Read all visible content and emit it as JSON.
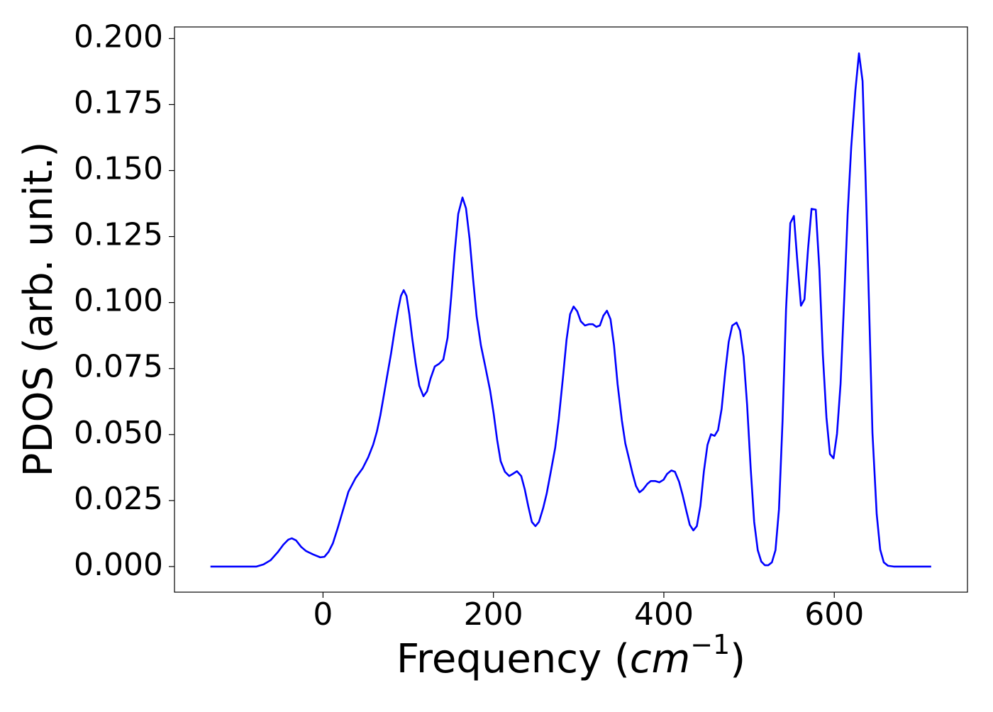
{
  "chart_data": {
    "type": "line",
    "x_label": [
      "Frequency (",
      "cm",
      "−1",
      ")"
    ],
    "y_label": "PDOS (arb. unit.)",
    "color": "#0000ff",
    "xlim": [
      -174.3,
      756.3
    ],
    "ylim": [
      -0.0097,
      0.2044
    ],
    "xticks": [
      0,
      200,
      400,
      600
    ],
    "yticks": [
      {
        "value": 0,
        "label": "0.000"
      },
      {
        "value": 0.025,
        "label": "0.025"
      },
      {
        "value": 0.05,
        "label": "0.050"
      },
      {
        "value": 0.075,
        "label": "0.075"
      },
      {
        "value": 0.1,
        "label": "0.100"
      },
      {
        "value": 0.125,
        "label": "0.125"
      },
      {
        "value": 0.15,
        "label": "0.150"
      },
      {
        "value": 0.175,
        "label": "0.175"
      },
      {
        "value": 0.2,
        "label": "0.200"
      }
    ],
    "x": [
      -132.1,
      -78.1,
      -69.8,
      -61.5,
      -53.2,
      -46.5,
      -40.7,
      -36.6,
      -31.6,
      -25.8,
      -20.0,
      -11.6,
      -3.3,
      1.7,
      6.6,
      11.6,
      17.4,
      23.3,
      29.9,
      38.2,
      46.5,
      53.2,
      59.0,
      63.2,
      67.3,
      71.5,
      75.6,
      79.8,
      83.9,
      88.1,
      91.4,
      94.7,
      98.0,
      101.3,
      104.7,
      108.8,
      113.0,
      117.9,
      122.1,
      126.2,
      131.2,
      136.2,
      141.2,
      146.2,
      150.4,
      154.5,
      158.7,
      163.7,
      167.8,
      172.0,
      176.2,
      180.3,
      185.3,
      190.3,
      196.1,
      200.2,
      204.4,
      208.5,
      213.5,
      218.5,
      222.7,
      227.6,
      232.6,
      236.8,
      240.9,
      245.1,
      249.3,
      253.4,
      258.4,
      262.6,
      267.6,
      272.5,
      276.7,
      281.7,
      285.8,
      290.0,
      294.1,
      298.3,
      302.5,
      307.4,
      312.4,
      316.6,
      320.7,
      324.9,
      329.0,
      333.2,
      337.4,
      341.5,
      345.7,
      350.7,
      354.8,
      359.0,
      363.2,
      367.3,
      371.4,
      375.6,
      380.6,
      384.7,
      389.7,
      394.7,
      399.7,
      403.8,
      408.8,
      413.0,
      417.9,
      422.1,
      426.3,
      430.4,
      434.6,
      438.7,
      442.9,
      447.0,
      451.2,
      455.3,
      459.5,
      463.6,
      467.8,
      472.0,
      476.1,
      480.3,
      485.3,
      489.4,
      493.6,
      497.7,
      501.9,
      506.0,
      510.2,
      514.3,
      518.5,
      522.6,
      526.8,
      531.0,
      535.1,
      539.3,
      543.4,
      548.4,
      552.6,
      556.7,
      560.9,
      565.0,
      569.2,
      573.3,
      578.3,
      582.5,
      586.6,
      590.8,
      594.9,
      599.1,
      603.2,
      607.4,
      611.6,
      615.7,
      619.9,
      624.8,
      629.0,
      633.2,
      636.5,
      640.6,
      644.8,
      649.8,
      653.9,
      658.1,
      663.0,
      669.7,
      713.7
    ],
    "values": [
      0,
      0,
      0.0008,
      0.0024,
      0.0054,
      0.0083,
      0.0102,
      0.0107,
      0.0099,
      0.0075,
      0.0059,
      0.0046,
      0.0035,
      0.0037,
      0.0056,
      0.0088,
      0.0147,
      0.0212,
      0.0284,
      0.0335,
      0.0372,
      0.0415,
      0.0463,
      0.0511,
      0.0573,
      0.0651,
      0.0728,
      0.0806,
      0.0892,
      0.0972,
      0.1025,
      0.1047,
      0.1025,
      0.0956,
      0.0865,
      0.0768,
      0.0685,
      0.0645,
      0.0664,
      0.0712,
      0.0758,
      0.0768,
      0.0784,
      0.0867,
      0.102,
      0.1189,
      0.1336,
      0.1398,
      0.1357,
      0.1242,
      0.1087,
      0.0948,
      0.0838,
      0.076,
      0.0667,
      0.0581,
      0.0479,
      0.0399,
      0.0359,
      0.0343,
      0.0351,
      0.0361,
      0.0343,
      0.0292,
      0.0228,
      0.0169,
      0.0153,
      0.0169,
      0.0222,
      0.0278,
      0.0364,
      0.045,
      0.056,
      0.072,
      0.0859,
      0.0956,
      0.0985,
      0.0967,
      0.0929,
      0.0913,
      0.0918,
      0.0918,
      0.0908,
      0.0913,
      0.095,
      0.0969,
      0.0937,
      0.0838,
      0.0691,
      0.0554,
      0.0466,
      0.041,
      0.0353,
      0.0305,
      0.0281,
      0.0292,
      0.0313,
      0.0324,
      0.0324,
      0.0319,
      0.0329,
      0.0351,
      0.0364,
      0.0359,
      0.0321,
      0.027,
      0.0212,
      0.0158,
      0.0137,
      0.0153,
      0.023,
      0.0361,
      0.0461,
      0.0501,
      0.0495,
      0.0517,
      0.0597,
      0.0736,
      0.0851,
      0.0913,
      0.0924,
      0.0894,
      0.0795,
      0.0613,
      0.0372,
      0.0169,
      0.0062,
      0.0019,
      0.0005,
      0.0005,
      0.0016,
      0.0062,
      0.0217,
      0.0552,
      0.0975,
      0.1301,
      0.1328,
      0.1154,
      0.0988,
      0.1012,
      0.1202,
      0.1355,
      0.1352,
      0.1127,
      0.0801,
      0.0565,
      0.0426,
      0.041,
      0.0503,
      0.0693,
      0.1009,
      0.1336,
      0.159,
      0.1805,
      0.1944,
      0.1839,
      0.1497,
      0.1015,
      0.0506,
      0.0198,
      0.0064,
      0.0016,
      0.0003,
      0,
      0
    ]
  }
}
